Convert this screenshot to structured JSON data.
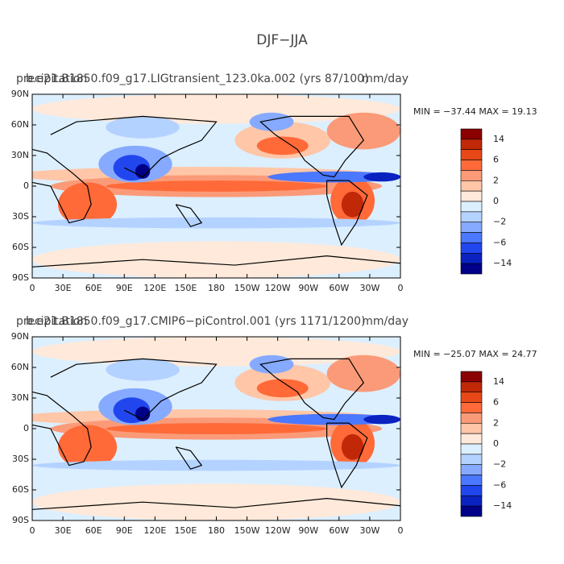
{
  "title": "DJF−JJA",
  "colorbar": {
    "labels": [
      "14",
      "6",
      "2",
      "0",
      "−2",
      "−6",
      "−14"
    ],
    "colors": [
      "#8b0000",
      "#c02808",
      "#e84818",
      "#ff6a38",
      "#fb9a78",
      "#ffc6a8",
      "#ffe9da",
      "#dcefff",
      "#b4d2ff",
      "#86aaff",
      "#4a78ff",
      "#2246ee",
      "#0a22c0",
      "#000088"
    ]
  },
  "lat_labels": [
    "90N",
    "60N",
    "30N",
    "0",
    "30S",
    "60S",
    "90S"
  ],
  "lon_labels": [
    "0",
    "30E",
    "60E",
    "90E",
    "120E",
    "150E",
    "180",
    "150W",
    "120W",
    "90W",
    "60W",
    "30W",
    "0"
  ],
  "panels": [
    {
      "left": "precipitation",
      "center": "b.e21.B1850.f09_g17.LIGtransient_123.0ka.002 (yrs 87/100)",
      "right": "mm/day",
      "minmax": "MIN = −37.44  MAX =  19.13"
    },
    {
      "left": "precipitation",
      "center": "b.e21.B1850.f09_g17.CMIP6−piControl.001 (yrs 1171/1200)",
      "right": "mm/day",
      "minmax": "MIN = −25.07  MAX =  24.77"
    }
  ]
}
